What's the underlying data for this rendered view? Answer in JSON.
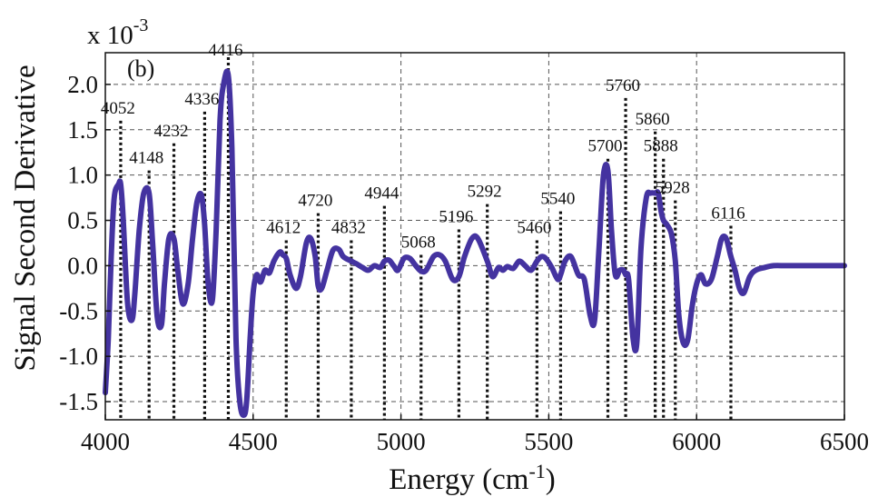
{
  "chart_data": {
    "type": "line",
    "panel_label": "(b)",
    "xlabel": "Energy (cm",
    "xlabel_sup": "-1",
    "xlabel_close": ")",
    "ylabel": "Signal Second Derivative",
    "y_multiplier": "x 10",
    "y_multiplier_exp": "-3",
    "xlim": [
      4000,
      6500
    ],
    "ylim": [
      -1.7,
      2.35
    ],
    "x_ticks": [
      4000,
      4500,
      5000,
      5500,
      6000,
      6500
    ],
    "x_tick_labels": [
      "4000",
      "4500",
      "5000",
      "5500",
      "6000",
      "6500"
    ],
    "y_ticks": [
      2.0,
      1.5,
      1.0,
      0.5,
      0.0,
      -0.5,
      -1.0,
      -1.5
    ],
    "y_tick_labels": [
      "2.0",
      "1.5",
      "1.0",
      "0.5",
      "0.0",
      "-0.5",
      "-1.0",
      "-1.5"
    ],
    "grid": true,
    "line_color": "#4433a0",
    "series": [
      {
        "x": [
          4000,
          4010,
          4020,
          4030,
          4045,
          4052,
          4060,
          4075,
          4090,
          4100,
          4115,
          4130,
          4148,
          4160,
          4175,
          4190,
          4200,
          4215,
          4232,
          4245,
          4262,
          4280,
          4295,
          4310,
          4325,
          4336,
          4348,
          4362,
          4375,
          4388,
          4400,
          4416,
          4428,
          4442,
          4455,
          4468,
          4478,
          4490,
          4500,
          4512,
          4525,
          4540,
          4555,
          4570,
          4590,
          4600,
          4612,
          4625,
          4645,
          4660,
          4680,
          4695,
          4710,
          4720,
          4732,
          4750,
          4770,
          4790,
          4805,
          4832,
          4850,
          4870,
          4890,
          4910,
          4930,
          4944,
          4960,
          4975,
          4990,
          5010,
          5030,
          5050,
          5068,
          5085,
          5110,
          5130,
          5150,
          5175,
          5196,
          5215,
          5240,
          5260,
          5292,
          5310,
          5330,
          5345,
          5360,
          5380,
          5400,
          5420,
          5440,
          5460,
          5475,
          5490,
          5510,
          5530,
          5540,
          5555,
          5575,
          5600,
          5620,
          5640,
          5655,
          5670,
          5685,
          5700,
          5712,
          5725,
          5740,
          5752,
          5760,
          5770,
          5785,
          5798,
          5812,
          5830,
          5845,
          5860,
          5870,
          5880,
          5888,
          5900,
          5915,
          5928,
          5940,
          5955,
          5970,
          5985,
          6000,
          6015,
          6030,
          6050,
          6070,
          6085,
          6100,
          6116,
          6130,
          6145,
          6160,
          6180,
          6200,
          6230,
          6260,
          6300,
          6350,
          6400,
          6450,
          6500
        ],
        "y": [
          -1.4,
          -0.8,
          0.1,
          0.75,
          0.9,
          0.9,
          0.55,
          -0.4,
          -0.6,
          -0.3,
          0.4,
          0.8,
          0.8,
          0.25,
          -0.55,
          -0.65,
          -0.2,
          0.3,
          0.3,
          -0.05,
          -0.42,
          -0.2,
          0.3,
          0.7,
          0.78,
          0.45,
          -0.2,
          -0.38,
          0.4,
          1.6,
          2.0,
          2.1,
          1.3,
          -0.8,
          -1.5,
          -1.65,
          -1.5,
          -0.8,
          -0.3,
          -0.1,
          -0.18,
          -0.05,
          -0.08,
          0.05,
          0.15,
          0.12,
          0.08,
          -0.1,
          -0.25,
          -0.12,
          0.25,
          0.3,
          0.1,
          -0.22,
          -0.25,
          -0.05,
          0.17,
          0.18,
          0.1,
          0.05,
          0.02,
          -0.02,
          -0.05,
          0.0,
          -0.02,
          0.05,
          0.06,
          0.0,
          -0.05,
          0.08,
          0.08,
          0.0,
          -0.06,
          -0.05,
          0.1,
          0.12,
          0.05,
          -0.15,
          -0.12,
          0.1,
          0.3,
          0.3,
          0.05,
          -0.12,
          -0.02,
          -0.05,
          -0.01,
          -0.03,
          0.05,
          0.0,
          -0.05,
          0.05,
          0.1,
          0.08,
          -0.02,
          -0.15,
          -0.1,
          0.05,
          0.1,
          -0.1,
          -0.15,
          -0.55,
          -0.6,
          0.2,
          1.0,
          1.05,
          0.4,
          -0.1,
          -0.05,
          -0.05,
          -0.1,
          -0.15,
          -0.8,
          -0.85,
          0.2,
          0.75,
          0.8,
          0.8,
          0.8,
          0.6,
          0.5,
          0.45,
          0.35,
          0.05,
          -0.55,
          -0.85,
          -0.82,
          -0.45,
          -0.2,
          -0.1,
          -0.2,
          -0.15,
          0.1,
          0.3,
          0.3,
          0.1,
          -0.05,
          -0.25,
          -0.3,
          -0.12,
          -0.05,
          -0.02,
          0.0,
          0.0,
          0.0,
          0.0,
          0.0,
          0.0
        ]
      }
    ],
    "peaks": [
      {
        "label": "4052",
        "x": 4052,
        "top": 1.6,
        "label_y": 1.68
      },
      {
        "label": "4148",
        "x": 4148,
        "top": 1.05,
        "label_y": 1.13
      },
      {
        "label": "4232",
        "x": 4232,
        "top": 1.35,
        "label_y": 1.43
      },
      {
        "label": "4336",
        "x": 4336,
        "top": 1.7,
        "label_y": 1.78
      },
      {
        "label": "4416",
        "x": 4416,
        "top": 2.3,
        "label_y": 2.32
      },
      {
        "label": "4612",
        "x": 4612,
        "top": 0.28,
        "label_y": 0.36
      },
      {
        "label": "4720",
        "x": 4720,
        "top": 0.58,
        "label_y": 0.66
      },
      {
        "label": "4832",
        "x": 4832,
        "top": 0.28,
        "label_y": 0.36
      },
      {
        "label": "4944",
        "x": 4944,
        "top": 0.66,
        "label_y": 0.74
      },
      {
        "label": "5068",
        "x": 5068,
        "top": 0.12,
        "label_y": 0.2
      },
      {
        "label": "5196",
        "x": 5196,
        "top": 0.4,
        "label_y": 0.48
      },
      {
        "label": "5292",
        "x": 5292,
        "top": 0.68,
        "label_y": 0.76
      },
      {
        "label": "5460",
        "x": 5460,
        "top": 0.28,
        "label_y": 0.36
      },
      {
        "label": "5540",
        "x": 5540,
        "top": 0.6,
        "label_y": 0.68
      },
      {
        "label": "5700",
        "x": 5700,
        "top": 1.18,
        "label_y": 1.26
      },
      {
        "label": "5760",
        "x": 5760,
        "top": 1.85,
        "label_y": 1.93
      },
      {
        "label": "5860",
        "x": 5860,
        "top": 1.48,
        "label_y": 1.56
      },
      {
        "label": "5888",
        "x": 5888,
        "top": 1.18,
        "label_y": 1.26
      },
      {
        "label": "5928",
        "x": 5928,
        "top": 0.72,
        "label_y": 0.8
      },
      {
        "label": "6116",
        "x": 6116,
        "top": 0.44,
        "label_y": 0.52
      }
    ]
  }
}
